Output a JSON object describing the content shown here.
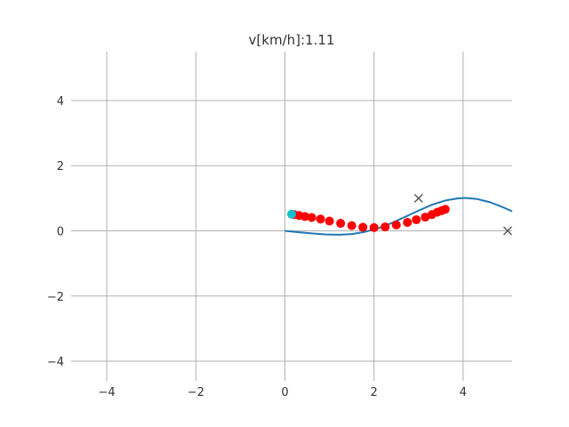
{
  "chart_data": {
    "type": "scatter",
    "title": "v[km/h]:1.11",
    "xlabel": "",
    "ylabel": "",
    "xlim": [
      -4.8,
      5.1
    ],
    "ylim": [
      -4.6,
      5.5
    ],
    "grid": true,
    "x_ticks": [
      -4,
      -2,
      0,
      2,
      4
    ],
    "y_ticks": [
      4,
      2,
      0,
      -2,
      -4
    ],
    "x_tick_labels": [
      "−4",
      "−2",
      "0",
      "2",
      "4"
    ],
    "y_tick_labels": [
      "4",
      "2",
      "0",
      "−2",
      "−4"
    ],
    "series": [
      {
        "type": "line",
        "color": "#1f77b4",
        "x": [
          0,
          0.3,
          0.6,
          0.9,
          1.2,
          1.5,
          1.8,
          2.1,
          2.4,
          2.7,
          3.0,
          3.3,
          3.6,
          3.9,
          4.05,
          4.3,
          4.6,
          4.9,
          5.1
        ],
        "y": [
          0,
          -0.04,
          -0.08,
          -0.11,
          -0.12,
          -0.1,
          -0.03,
          0.08,
          0.24,
          0.43,
          0.62,
          0.8,
          0.93,
          1.0,
          1.01,
          0.98,
          0.88,
          0.72,
          0.6
        ]
      },
      {
        "type": "scatter",
        "color": "#ff0000",
        "marker": "circle",
        "x": [
          0.2,
          0.32,
          0.45,
          0.6,
          0.8,
          1.0,
          1.25,
          1.5,
          1.75,
          2.0,
          2.25,
          2.5,
          2.75,
          2.95,
          3.15,
          3.3,
          3.42,
          3.52,
          3.6
        ],
        "y": [
          0.5,
          0.47,
          0.44,
          0.41,
          0.36,
          0.3,
          0.23,
          0.16,
          0.11,
          0.1,
          0.12,
          0.18,
          0.26,
          0.34,
          0.42,
          0.5,
          0.57,
          0.62,
          0.66
        ]
      },
      {
        "type": "scatter",
        "color": "#17becf",
        "marker": "circle",
        "x": [
          0.15
        ],
        "y": [
          0.51
        ]
      },
      {
        "type": "scatter",
        "color": "#555555",
        "marker": "x",
        "x": [
          3.0,
          5.0
        ],
        "y": [
          1.0,
          0.0
        ]
      }
    ]
  }
}
